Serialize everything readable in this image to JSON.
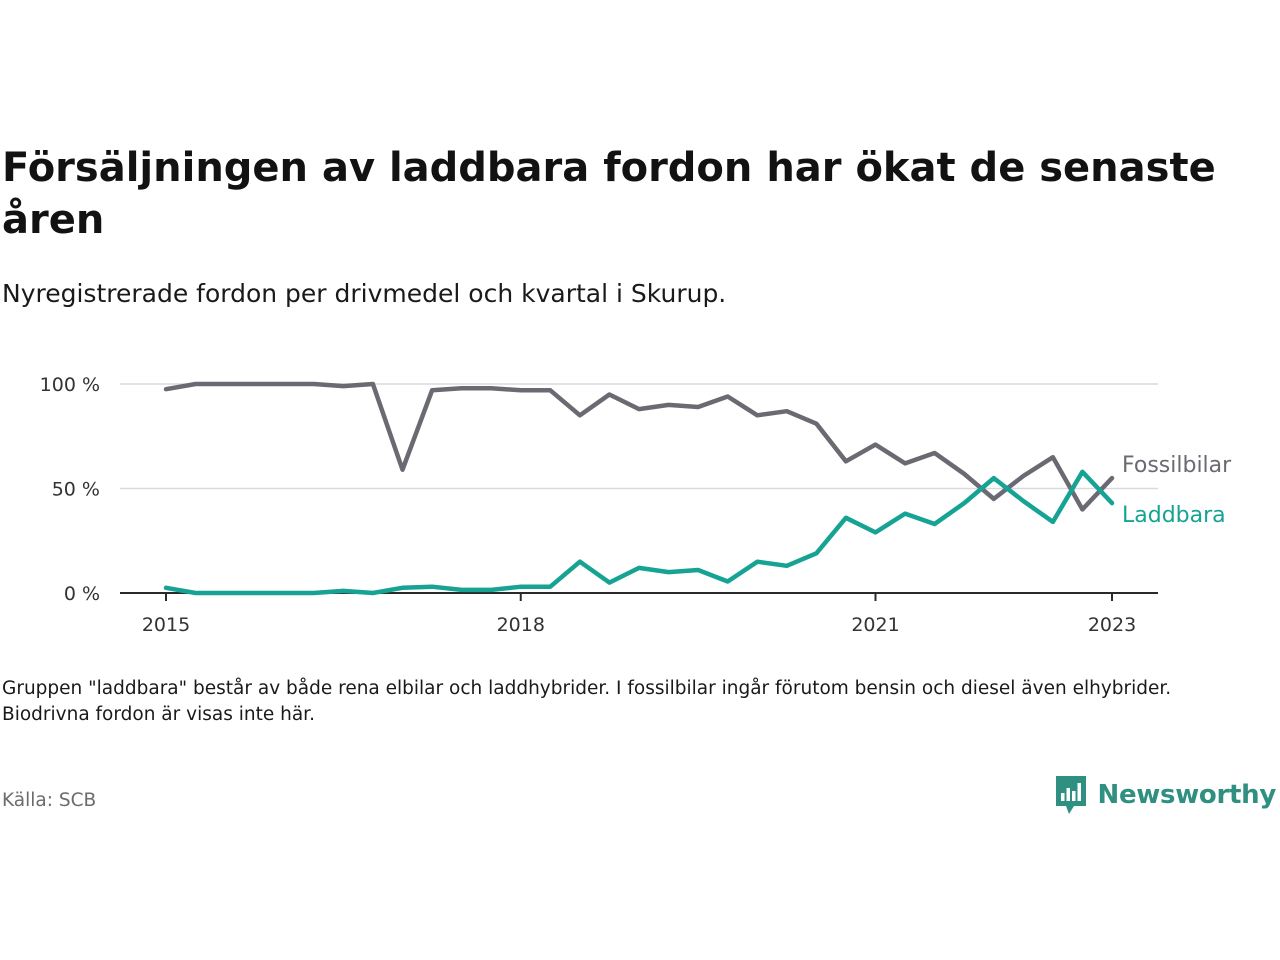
{
  "title": "Försäljningen av laddbara fordon har ökat de senaste åren",
  "subtitle": "Nyregistrerade fordon per drivmedel och kvartal i Skurup.",
  "footnote": "Gruppen \"laddbara\" består av både rena elbilar och laddhybrider. I fossilbilar ingår förutom bensin och diesel även elhybrider. Biodrivna fordon är visas inte här.",
  "source": "Källa: SCB",
  "brand": {
    "name": "Newsworthy",
    "icon": "newsworthy-logo-icon",
    "color": "#2f8f80"
  },
  "chart_data": {
    "type": "line",
    "x_ticks": [
      {
        "x": 2015,
        "label": "2015"
      },
      {
        "x": 2018,
        "label": "2018"
      },
      {
        "x": 2021,
        "label": "2021"
      },
      {
        "x": 2023,
        "label": "2023"
      }
    ],
    "y_ticks": [
      {
        "y": 0,
        "label": "0 %"
      },
      {
        "y": 50,
        "label": "50 %"
      },
      {
        "y": 100,
        "label": "100 %"
      }
    ],
    "ylim": [
      0,
      100
    ],
    "grid": true,
    "series": [
      {
        "name": "Fossilbilar",
        "color": "#6b6a72",
        "x": [
          2015.0,
          2015.25,
          2015.5,
          2015.75,
          2016.0,
          2016.25,
          2016.5,
          2016.75,
          2017.0,
          2017.25,
          2017.5,
          2017.75,
          2018.0,
          2018.25,
          2018.5,
          2018.75,
          2019.0,
          2019.25,
          2019.5,
          2019.75,
          2020.0,
          2020.25,
          2020.5,
          2020.75,
          2021.0,
          2021.25,
          2021.5,
          2021.75,
          2022.0,
          2022.25,
          2022.5,
          2022.75,
          2023.0
        ],
        "values": [
          97.5,
          100,
          100,
          100,
          100,
          100,
          99,
          100,
          59,
          97,
          98,
          98,
          97,
          97,
          85,
          95,
          88,
          90,
          89,
          94,
          85,
          87,
          81,
          63,
          71,
          62,
          67,
          57,
          45,
          56,
          65,
          40,
          55
        ]
      },
      {
        "name": "Laddbara",
        "color": "#16a394",
        "x": [
          2015.0,
          2015.25,
          2015.5,
          2015.75,
          2016.0,
          2016.25,
          2016.5,
          2016.75,
          2017.0,
          2017.25,
          2017.5,
          2017.75,
          2018.0,
          2018.25,
          2018.5,
          2018.75,
          2019.0,
          2019.25,
          2019.5,
          2019.75,
          2020.0,
          2020.25,
          2020.5,
          2020.75,
          2021.0,
          2021.25,
          2021.5,
          2021.75,
          2022.0,
          2022.25,
          2022.5,
          2022.75,
          2023.0
        ],
        "values": [
          2.5,
          0,
          0,
          0,
          0,
          0,
          1,
          0,
          2.5,
          3,
          1.5,
          1.5,
          3,
          3,
          15,
          5,
          12,
          10,
          11,
          5.5,
          15,
          13,
          19,
          36,
          29,
          38,
          33,
          43,
          55,
          44,
          34,
          58,
          43
        ]
      }
    ]
  }
}
